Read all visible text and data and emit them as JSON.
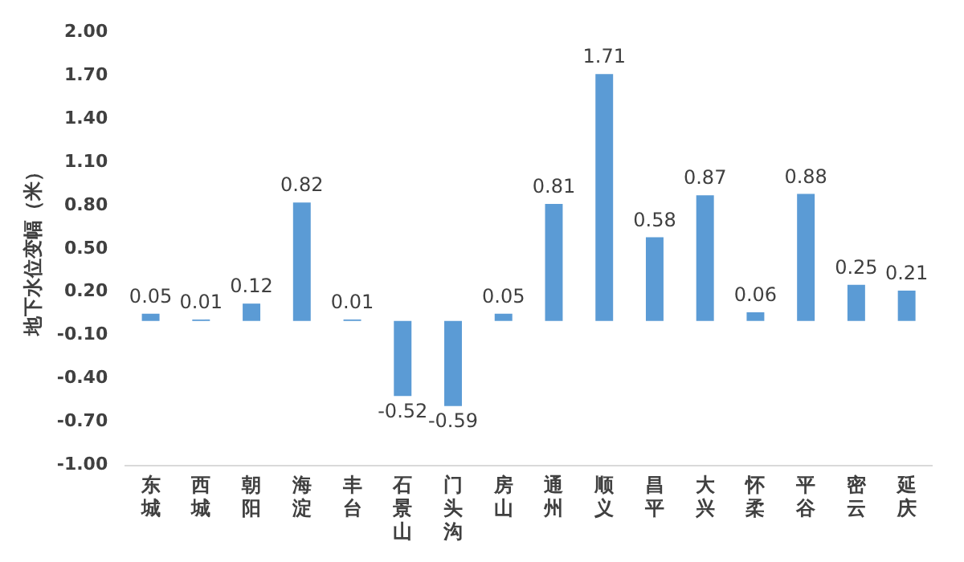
{
  "chart_data": {
    "type": "bar",
    "ylabel": "地下水位变幅（米）",
    "categories": [
      "东城",
      "西城",
      "朝阳",
      "海淀",
      "丰台",
      "石景山",
      "门头沟",
      "房山",
      "通州",
      "顺义",
      "昌平",
      "大兴",
      "怀柔",
      "平谷",
      "密云",
      "延庆"
    ],
    "values": [
      0.05,
      0.01,
      0.12,
      0.82,
      0.01,
      -0.52,
      -0.59,
      0.05,
      0.81,
      1.71,
      0.58,
      0.87,
      0.06,
      0.88,
      0.25,
      0.21
    ],
    "color": "#5b9bd5",
    "ylim": [
      -1,
      2
    ],
    "yticks": [
      {
        "value": -1,
        "label": "-1.00"
      },
      {
        "value": -0.7,
        "label": "-0.70"
      },
      {
        "value": -0.4,
        "label": "-0.40"
      },
      {
        "value": -0.1,
        "label": "-0.10"
      },
      {
        "value": 0.2,
        "label": "0.20"
      },
      {
        "value": 0.5,
        "label": "0.50"
      },
      {
        "value": 0.8,
        "label": "0.80"
      },
      {
        "value": 1.1,
        "label": "1.10"
      },
      {
        "value": 1.4,
        "label": "1.40"
      },
      {
        "value": 1.7,
        "label": "1.70"
      },
      {
        "value": 2,
        "label": "2.00"
      }
    ],
    "data_labels": true,
    "grid": false,
    "legend": false
  }
}
